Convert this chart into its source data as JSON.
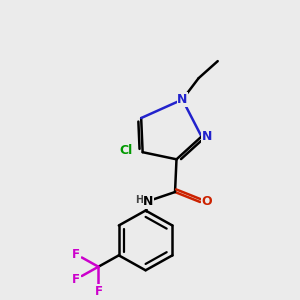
{
  "bg_color": "#ebebeb",
  "atom_colors": {
    "C": "#000000",
    "N": "#2222cc",
    "O": "#cc2200",
    "Cl": "#009900",
    "F": "#cc00cc",
    "H": "#444444"
  },
  "figsize": [
    3.0,
    3.0
  ],
  "dpi": 100
}
